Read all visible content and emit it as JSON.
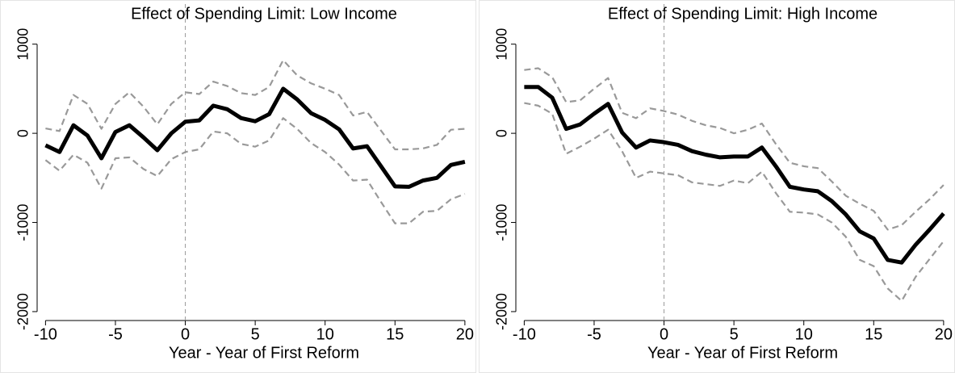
{
  "chart_data": [
    {
      "type": "line",
      "title": "Effect of Spending Limit: Low Income",
      "x_label": "Year - Year of First Reform",
      "x": [
        -10,
        -9,
        -8,
        -7,
        -6,
        -5,
        -4,
        -3,
        -2,
        -1,
        0,
        1,
        2,
        3,
        4,
        5,
        6,
        7,
        8,
        9,
        10,
        11,
        12,
        13,
        14,
        15,
        16,
        17,
        18,
        19,
        20
      ],
      "series": [
        {
          "color": "#000000",
          "style": "solid",
          "values": [
            -135,
            -210,
            90,
            -25,
            -280,
            15,
            90,
            -45,
            -190,
            0,
            130,
            145,
            310,
            270,
            170,
            135,
            215,
            500,
            380,
            225,
            150,
            45,
            -170,
            -145,
            -370,
            -595,
            -600,
            -530,
            -500,
            -355,
            -320
          ]
        },
        {
          "color": "#999999",
          "style": "dashed",
          "values": [
            55,
            25,
            430,
            330,
            50,
            330,
            460,
            300,
            100,
            330,
            460,
            440,
            580,
            530,
            450,
            430,
            520,
            820,
            650,
            560,
            500,
            430,
            200,
            240,
            30,
            -180,
            -180,
            -170,
            -130,
            40,
            50
          ]
        },
        {
          "color": "#999999",
          "style": "dashed",
          "values": [
            -300,
            -420,
            -240,
            -330,
            -620,
            -280,
            -270,
            -400,
            -480,
            -290,
            -210,
            -180,
            20,
            0,
            -120,
            -150,
            -80,
            170,
            50,
            -110,
            -210,
            -350,
            -530,
            -520,
            -770,
            -1010,
            -1010,
            -880,
            -870,
            -740,
            -680
          ]
        }
      ],
      "xlim": [
        -10.6,
        20.7
      ],
      "xticks": [
        -10,
        -5,
        0,
        5,
        10,
        15,
        20
      ],
      "ylim": [
        -2100,
        1450
      ],
      "yticks": [
        -2000,
        -1000,
        0,
        1000
      ],
      "vline": 0,
      "grid": false
    },
    {
      "type": "line",
      "title": "Effect of Spending Limit: High Income",
      "x_label": "Year - Year of First Reform",
      "x": [
        -10,
        -9,
        -8,
        -7,
        -6,
        -5,
        -4,
        -3,
        -2,
        -1,
        0,
        1,
        2,
        3,
        4,
        5,
        6,
        7,
        8,
        9,
        10,
        11,
        12,
        13,
        14,
        15,
        16,
        17,
        18,
        19,
        20
      ],
      "series": [
        {
          "color": "#000000",
          "style": "solid",
          "values": [
            520,
            520,
            400,
            50,
            100,
            220,
            330,
            10,
            -160,
            -80,
            -100,
            -130,
            -200,
            -240,
            -270,
            -260,
            -260,
            -160,
            -370,
            -600,
            -630,
            -650,
            -760,
            -910,
            -1100,
            -1180,
            -1420,
            -1450,
            -1250,
            -1080,
            -900
          ]
        },
        {
          "color": "#999999",
          "style": "dashed",
          "values": [
            710,
            730,
            630,
            350,
            370,
            500,
            620,
            230,
            170,
            280,
            250,
            210,
            140,
            90,
            60,
            0,
            40,
            110,
            -120,
            -330,
            -370,
            -390,
            -540,
            -700,
            -790,
            -870,
            -1080,
            -1030,
            -880,
            -740,
            -580
          ]
        },
        {
          "color": "#999999",
          "style": "dashed",
          "values": [
            340,
            310,
            220,
            -230,
            -150,
            -60,
            40,
            -200,
            -500,
            -430,
            -450,
            -470,
            -550,
            -570,
            -590,
            -530,
            -560,
            -430,
            -670,
            -880,
            -890,
            -910,
            -1000,
            -1160,
            -1420,
            -1490,
            -1740,
            -1880,
            -1610,
            -1410,
            -1210
          ]
        }
      ],
      "xlim": [
        -10.6,
        20.7
      ],
      "xticks": [
        -10,
        -5,
        0,
        5,
        10,
        15,
        20
      ],
      "ylim": [
        -2100,
        1450
      ],
      "yticks": [
        -2000,
        -1000,
        0,
        1000
      ],
      "vline": 0,
      "grid": false
    }
  ]
}
